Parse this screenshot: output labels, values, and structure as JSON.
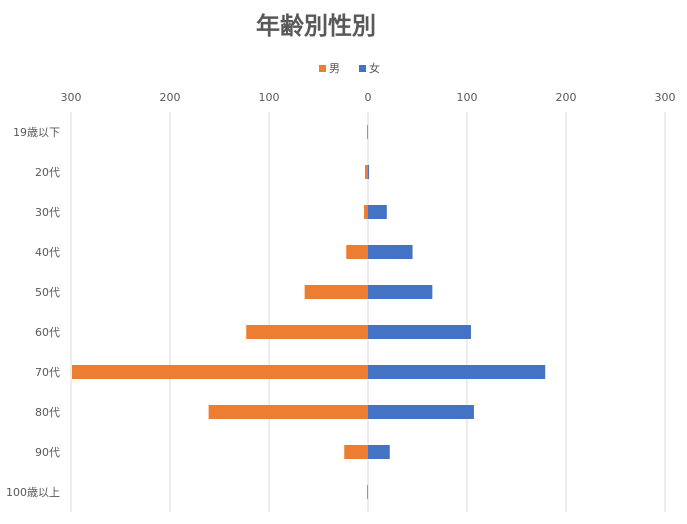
{
  "chart_data": {
    "type": "bar",
    "orientation": "horizontal-diverging",
    "title": "年齢別性別",
    "categories": [
      "19歳以下",
      "20代",
      "30代",
      "40代",
      "50代",
      "60代",
      "70代",
      "80代",
      "90代",
      "100歳以上"
    ],
    "series": [
      {
        "name": "男",
        "color": "#ED7D31",
        "values": [
          1,
          3,
          4,
          22,
          64,
          123,
          299,
          161,
          24,
          1
        ]
      },
      {
        "name": "女",
        "color": "#4472C4",
        "values": [
          0,
          1,
          19,
          45,
          65,
          104,
          179,
          107,
          22,
          0
        ]
      }
    ],
    "xlim": [
      -300,
      300
    ],
    "x_ticks": [
      -300,
      -200,
      -100,
      0,
      100,
      200,
      300
    ],
    "x_tick_labels": [
      "300",
      "200",
      "100",
      "0",
      "100",
      "200",
      "300"
    ],
    "xlabel": "",
    "ylabel": "",
    "grid": true,
    "legend_position": "top"
  }
}
